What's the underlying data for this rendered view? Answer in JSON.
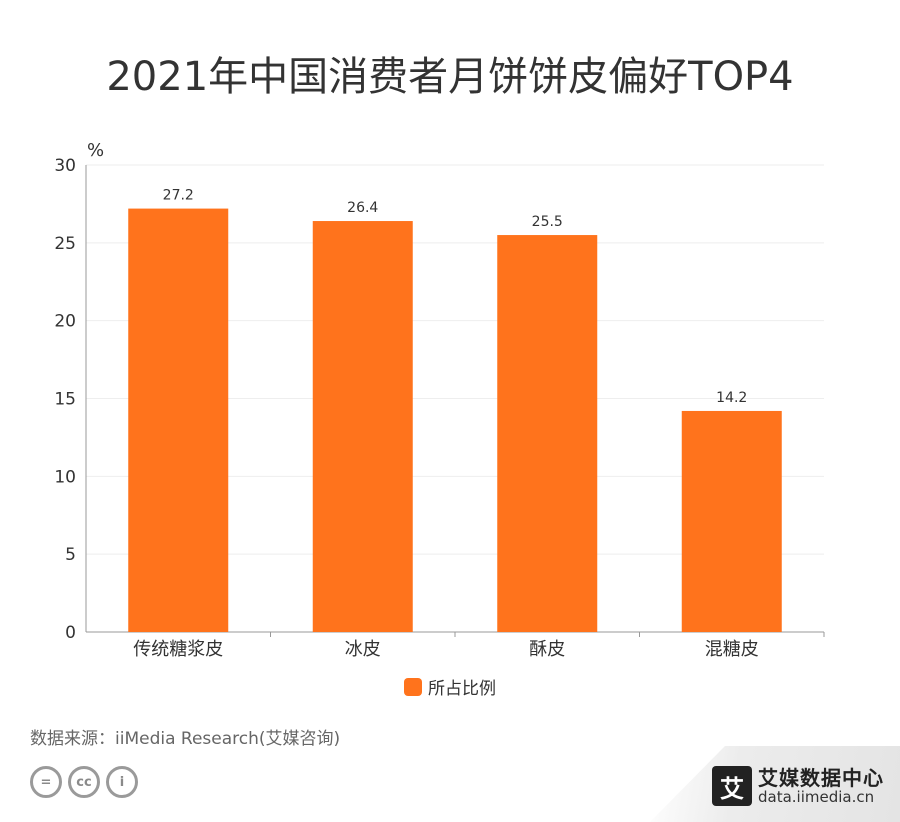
{
  "title": "2021年中国消费者月饼饼皮偏好TOP4",
  "source": "数据来源：iiMedia Research(艾媒咨询)",
  "badges": [
    "=",
    "cc",
    "i"
  ],
  "logo": {
    "mark": "艾",
    "name": "艾媒数据中心",
    "url": "data.iimedia.cn"
  },
  "colors": {
    "bar": "#ff731c",
    "axis": "#999999",
    "grid": "#eeeeee"
  },
  "chart_data": {
    "type": "bar",
    "title": "2021年中国消费者月饼饼皮偏好TOP4",
    "unit": "%",
    "categories": [
      "传统糖浆皮",
      "冰皮",
      "酥皮",
      "混糖皮"
    ],
    "series": [
      {
        "name": "所占比例",
        "values": [
          27.2,
          26.4,
          25.5,
          14.2
        ]
      }
    ],
    "ylim": [
      0,
      30
    ],
    "yticks": [
      0,
      5,
      10,
      15,
      20,
      25,
      30
    ],
    "grid": true,
    "legend": "bottom"
  }
}
